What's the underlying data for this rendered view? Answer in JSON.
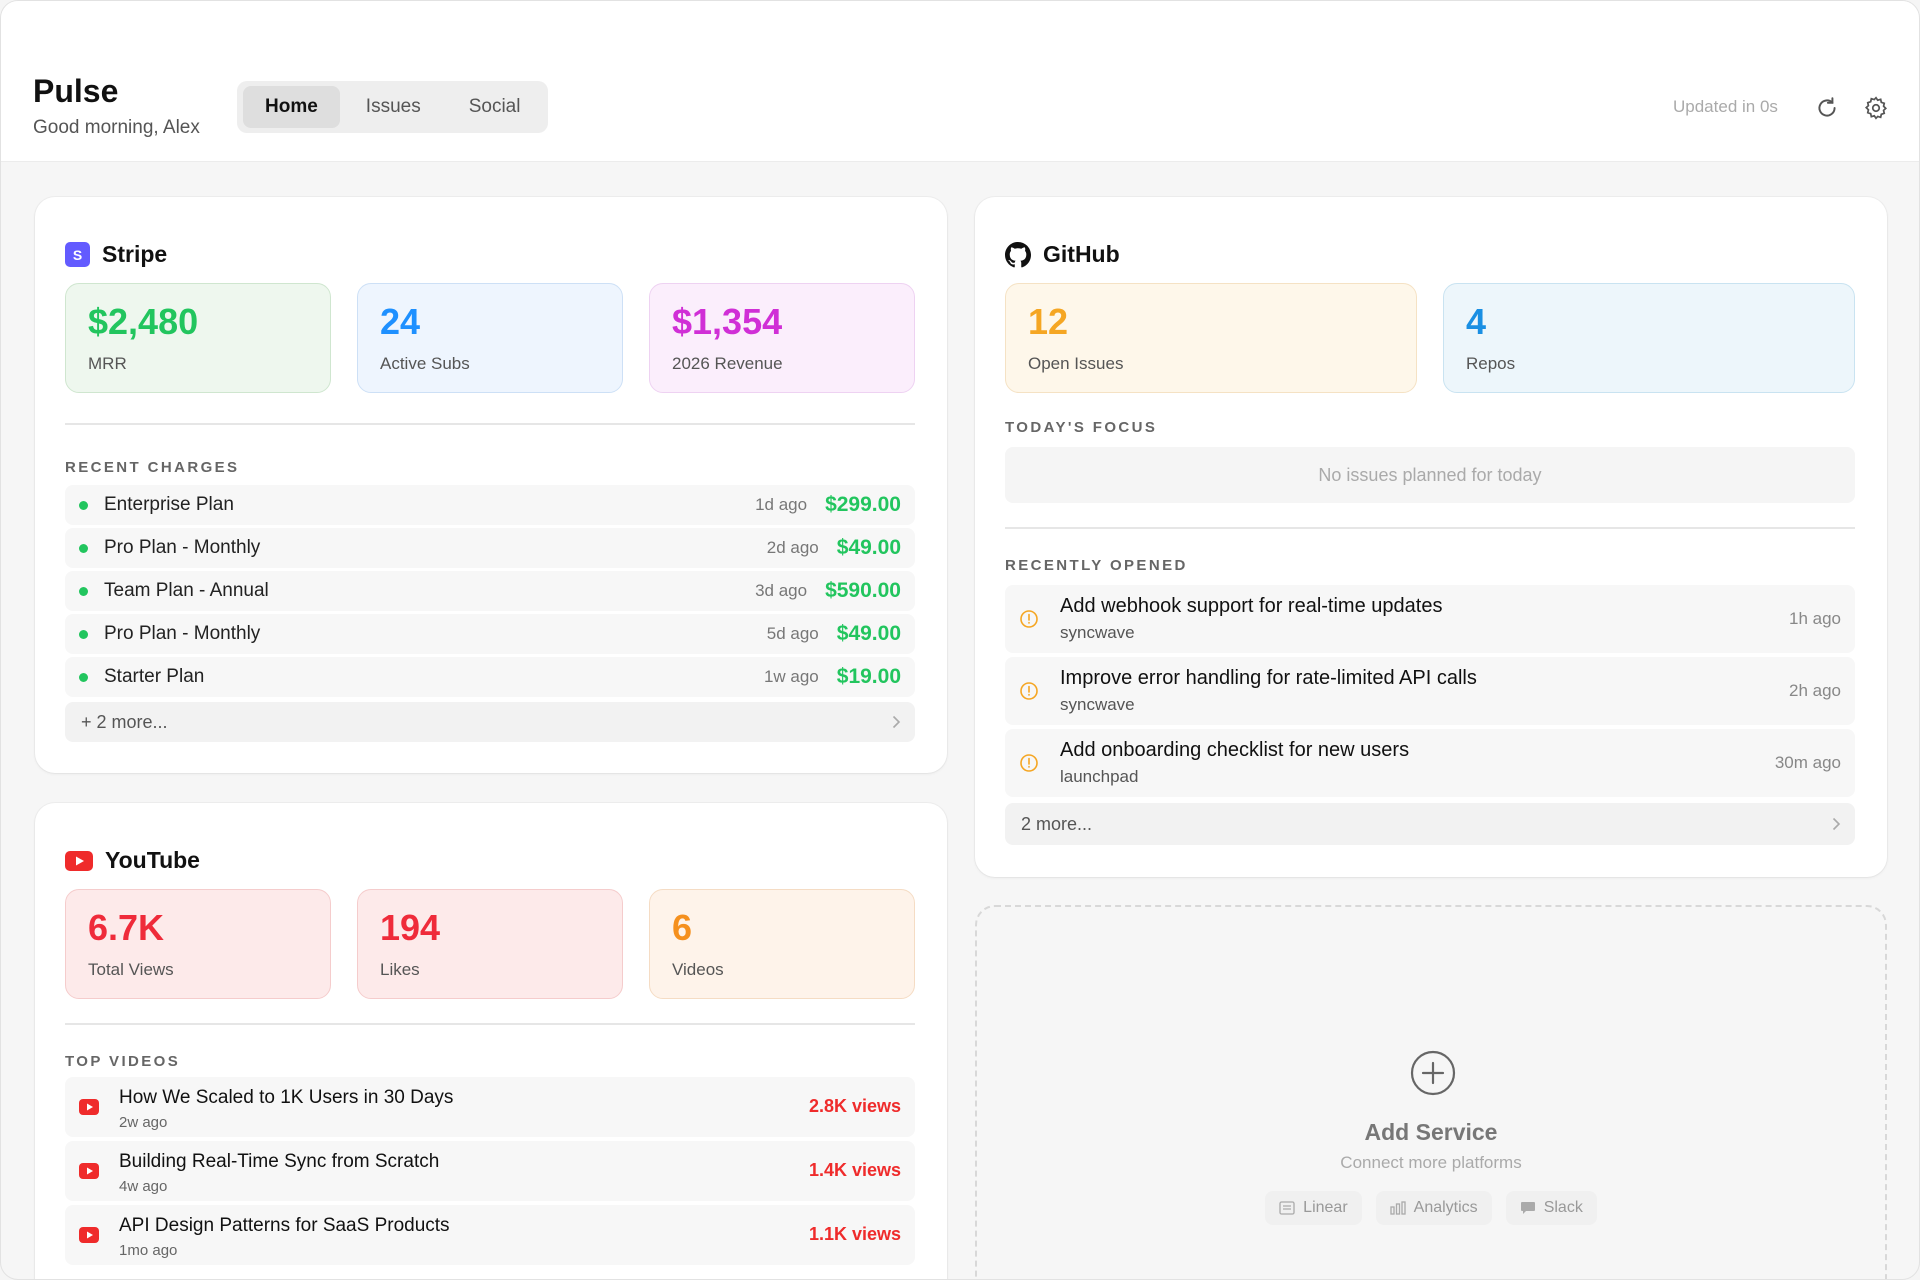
{
  "app": {
    "title": "Pulse",
    "greeting": "Good morning, Alex",
    "updated": "Updated in 0s"
  },
  "tabs": [
    {
      "label": "Home",
      "active": true
    },
    {
      "label": "Issues"
    },
    {
      "label": "Social"
    }
  ],
  "stripe": {
    "title": "Stripe",
    "icon_letter": "S",
    "stats": [
      {
        "value": "$2,480",
        "label": "MRR",
        "color": "#22c55e"
      },
      {
        "value": "24",
        "label": "Active Subs",
        "color": "#1e90ff"
      },
      {
        "value": "$1,354",
        "label": "2026 Revenue",
        "color": "#d02fd6"
      }
    ],
    "section": "RECENT CHARGES",
    "charges": [
      {
        "name": "Enterprise Plan",
        "ago": "1d ago",
        "amount": "$299.00"
      },
      {
        "name": "Pro Plan - Monthly",
        "ago": "2d ago",
        "amount": "$49.00"
      },
      {
        "name": "Team Plan - Annual",
        "ago": "3d ago",
        "amount": "$590.00"
      },
      {
        "name": "Pro Plan - Monthly",
        "ago": "5d ago",
        "amount": "$49.00"
      },
      {
        "name": "Starter Plan",
        "ago": "1w ago",
        "amount": "$19.00"
      }
    ],
    "more": "+ 2 more..."
  },
  "github": {
    "title": "GitHub",
    "stats": [
      {
        "value": "12",
        "label": "Open Issues",
        "color": "#f5a623"
      },
      {
        "value": "4",
        "label": "Repos",
        "color": "#1a8fe3"
      }
    ],
    "focus_label": "TODAY'S FOCUS",
    "focus_empty": "No issues planned for today",
    "recent_label": "RECENTLY OPENED",
    "issues": [
      {
        "title": "Add webhook support for real-time updates",
        "repo": "syncwave",
        "ago": "1h ago"
      },
      {
        "title": "Improve error handling for rate-limited API calls",
        "repo": "syncwave",
        "ago": "2h ago"
      },
      {
        "title": "Add onboarding checklist for new users",
        "repo": "launchpad",
        "ago": "30m ago"
      }
    ],
    "more": "2 more..."
  },
  "youtube": {
    "title": "YouTube",
    "stats": [
      {
        "value": "6.7K",
        "label": "Total Views",
        "color": "#ef2b3a"
      },
      {
        "value": "194",
        "label": "Likes",
        "color": "#ef2b3a"
      },
      {
        "value": "6",
        "label": "Videos",
        "color": "#f5901e"
      }
    ],
    "section": "TOP VIDEOS",
    "videos": [
      {
        "title": "How We Scaled to 1K Users in 30 Days",
        "ago": "2w ago",
        "views": "2.8K views"
      },
      {
        "title": "Building Real-Time Sync from Scratch",
        "ago": "4w ago",
        "views": "1.4K views"
      },
      {
        "title": "API Design Patterns for SaaS Products",
        "ago": "1mo ago",
        "views": "1.1K views"
      }
    ]
  },
  "add_service": {
    "title": "Add Service",
    "subtitle": "Connect more platforms",
    "chips": [
      {
        "label": "Linear"
      },
      {
        "label": "Analytics"
      },
      {
        "label": "Slack"
      }
    ]
  }
}
